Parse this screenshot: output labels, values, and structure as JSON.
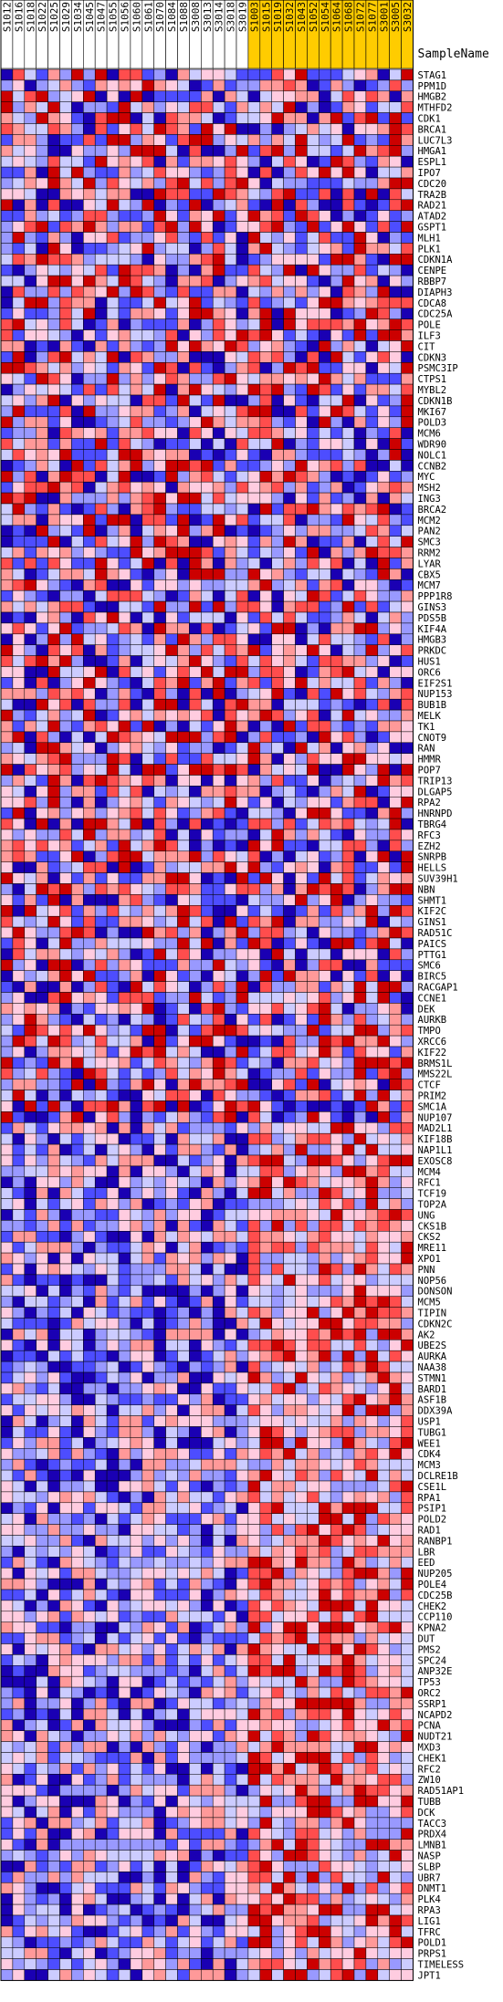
{
  "chart_data": {
    "type": "heatmap",
    "title": "",
    "row_header": "SampleName",
    "samples": [
      "S1012",
      "S1016",
      "S1018",
      "S1022",
      "S1025",
      "S1029",
      "S1034",
      "S1045",
      "S1047",
      "S1055",
      "S1056",
      "S1060",
      "S1061",
      "S1070",
      "S1084",
      "S1088",
      "S3008",
      "S3013",
      "S3014",
      "S3018",
      "S3019",
      "S1003",
      "S1015",
      "S1019",
      "S1032",
      "S1043",
      "S1052",
      "S1054",
      "S1064",
      "S1068",
      "S1072",
      "S1077",
      "S3001",
      "S3005",
      "S3032"
    ],
    "sample_groups": [
      0,
      0,
      0,
      0,
      0,
      0,
      0,
      0,
      0,
      0,
      0,
      0,
      0,
      0,
      0,
      0,
      0,
      0,
      0,
      0,
      0,
      1,
      1,
      1,
      1,
      1,
      1,
      1,
      1,
      1,
      1,
      1,
      1,
      1,
      1
    ],
    "genes": [
      "STAG1",
      "PPM1D",
      "HMGB2",
      "MTHFD2",
      "CDK1",
      "BRCA1",
      "LUC7L3",
      "HMGA1",
      "ESPL1",
      "IPO7",
      "CDC20",
      "TRA2B",
      "RAD21",
      "ATAD2",
      "GSPT1",
      "MLH1",
      "PLK1",
      "CDKN1A",
      "CENPE",
      "RBBP7",
      "DIAPH3",
      "CDCA8",
      "CDC25A",
      "POLE",
      "ILF3",
      "CIT",
      "CDKN3",
      "PSMC3IP",
      "CTPS1",
      "MYBL2",
      "CDKN1B",
      "MKI67",
      "POLD3",
      "MCM6",
      "WDR90",
      "NOLC1",
      "CCNB2",
      "MYC",
      "MSH2",
      "ING3",
      "BRCA2",
      "MCM2",
      "PAN2",
      "SMC3",
      "RRM2",
      "LYAR",
      "CBX5",
      "MCM7",
      "PPP1R8",
      "GINS3",
      "PDS5B",
      "KIF4A",
      "HMGB3",
      "PRKDC",
      "HUS1",
      "ORC6",
      "EIF2S1",
      "NUP153",
      "BUB1B",
      "MELK",
      "TK1",
      "CNOT9",
      "RAN",
      "HMMR",
      "POP7",
      "TRIP13",
      "DLGAP5",
      "RPA2",
      "HNRNPD",
      "TBRG4",
      "RFC3",
      "EZH2",
      "SNRPB",
      "HELLS",
      "SUV39H1",
      "NBN",
      "SHMT1",
      "KIF2C",
      "GINS1",
      "RAD51C",
      "PAICS",
      "PTTG1",
      "SMC6",
      "BIRC5",
      "RACGAP1",
      "CCNE1",
      "DEK",
      "AURKB",
      "TMPO",
      "XRCC6",
      "KIF22",
      "BRMS1L",
      "MMS22L",
      "CTCF",
      "PRIM2",
      "SMC1A",
      "NUP107",
      "MAD2L1",
      "KIF18B",
      "NAP1L1",
      "EXOSC8",
      "MCM4",
      "RFC1",
      "TCF19",
      "TOP2A",
      "UNG",
      "CKS1B",
      "CKS2",
      "MRE11",
      "XPO1",
      "PNN",
      "NOP56",
      "DONSON",
      "MCM5",
      "TIPIN",
      "CDKN2C",
      "AK2",
      "UBE2S",
      "AURKA",
      "NAA38",
      "STMN1",
      "BARD1",
      "ASF1B",
      "DDX39A",
      "USP1",
      "TUBG1",
      "WEE1",
      "CDK4",
      "MCM3",
      "DCLRE1B",
      "CSE1L",
      "RPA1",
      "PSIP1",
      "POLD2",
      "RAD1",
      "RANBP1",
      "LBR",
      "EED",
      "NUP205",
      "POLE4",
      "CDC25B",
      "CHEK2",
      "CCP110",
      "KPNA2",
      "DUT",
      "PMS2",
      "SPC24",
      "ANP32E",
      "TP53",
      "ORC2",
      "SSRP1",
      "NCAPD2",
      "PCNA",
      "NUDT21",
      "MXD3",
      "CHEK1",
      "RFC2",
      "ZW10",
      "RAD51AP1",
      "TUBB",
      "DCK",
      "TACC3",
      "PRDX4",
      "LMNB1",
      "NASP",
      "SLBP",
      "UBR7",
      "DNMT1",
      "PLK4",
      "RPA3",
      "LIG1",
      "TFRC",
      "POLD1",
      "PRPS1",
      "TIMELESS",
      "JPT1"
    ],
    "color_scale": [
      "#1a00b3",
      "#4d4dff",
      "#9999ff",
      "#ccccff",
      "#ffcce0",
      "#ff9999",
      "#ff4d4d",
      "#cc0000"
    ],
    "group_colors": [
      "#ffffff",
      "#ffcc00"
    ],
    "grid": true
  }
}
